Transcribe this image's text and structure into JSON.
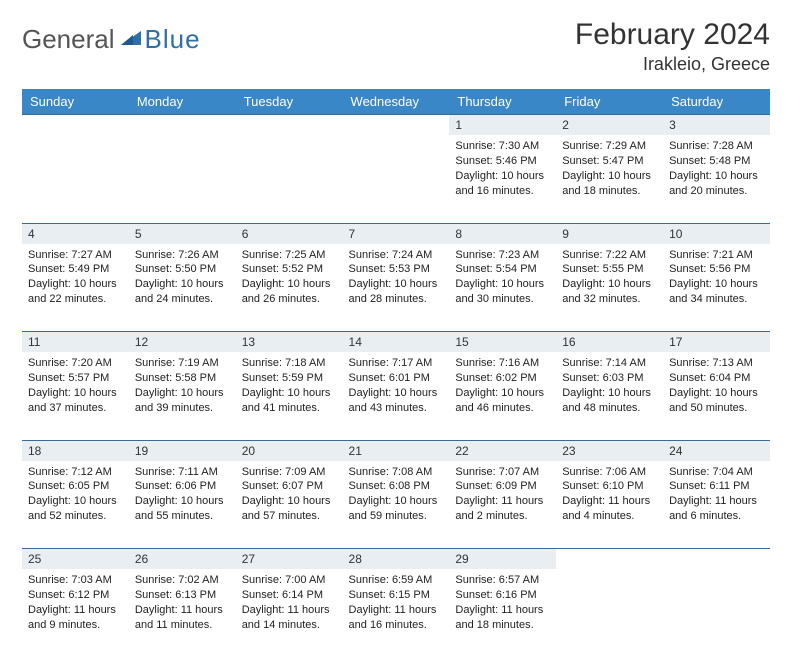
{
  "brand": {
    "general": "General",
    "blue": "Blue"
  },
  "title": "February 2024",
  "location": "Irakleio, Greece",
  "colors": {
    "header_bg": "#3a87c8",
    "header_text": "#ffffff",
    "daynum_bg": "#e9eef2",
    "row_divider": "#3a6a95",
    "logo_blue": "#2f6fa8",
    "logo_gray": "#555555"
  },
  "weekdays": [
    "Sunday",
    "Monday",
    "Tuesday",
    "Wednesday",
    "Thursday",
    "Friday",
    "Saturday"
  ],
  "weeks": [
    {
      "nums": [
        "",
        "",
        "",
        "",
        "1",
        "2",
        "3"
      ],
      "cells": [
        null,
        null,
        null,
        null,
        {
          "sunrise": "Sunrise: 7:30 AM",
          "sunset": "Sunset: 5:46 PM",
          "day1": "Daylight: 10 hours",
          "day2": "and 16 minutes."
        },
        {
          "sunrise": "Sunrise: 7:29 AM",
          "sunset": "Sunset: 5:47 PM",
          "day1": "Daylight: 10 hours",
          "day2": "and 18 minutes."
        },
        {
          "sunrise": "Sunrise: 7:28 AM",
          "sunset": "Sunset: 5:48 PM",
          "day1": "Daylight: 10 hours",
          "day2": "and 20 minutes."
        }
      ]
    },
    {
      "nums": [
        "4",
        "5",
        "6",
        "7",
        "8",
        "9",
        "10"
      ],
      "cells": [
        {
          "sunrise": "Sunrise: 7:27 AM",
          "sunset": "Sunset: 5:49 PM",
          "day1": "Daylight: 10 hours",
          "day2": "and 22 minutes."
        },
        {
          "sunrise": "Sunrise: 7:26 AM",
          "sunset": "Sunset: 5:50 PM",
          "day1": "Daylight: 10 hours",
          "day2": "and 24 minutes."
        },
        {
          "sunrise": "Sunrise: 7:25 AM",
          "sunset": "Sunset: 5:52 PM",
          "day1": "Daylight: 10 hours",
          "day2": "and 26 minutes."
        },
        {
          "sunrise": "Sunrise: 7:24 AM",
          "sunset": "Sunset: 5:53 PM",
          "day1": "Daylight: 10 hours",
          "day2": "and 28 minutes."
        },
        {
          "sunrise": "Sunrise: 7:23 AM",
          "sunset": "Sunset: 5:54 PM",
          "day1": "Daylight: 10 hours",
          "day2": "and 30 minutes."
        },
        {
          "sunrise": "Sunrise: 7:22 AM",
          "sunset": "Sunset: 5:55 PM",
          "day1": "Daylight: 10 hours",
          "day2": "and 32 minutes."
        },
        {
          "sunrise": "Sunrise: 7:21 AM",
          "sunset": "Sunset: 5:56 PM",
          "day1": "Daylight: 10 hours",
          "day2": "and 34 minutes."
        }
      ]
    },
    {
      "nums": [
        "11",
        "12",
        "13",
        "14",
        "15",
        "16",
        "17"
      ],
      "cells": [
        {
          "sunrise": "Sunrise: 7:20 AM",
          "sunset": "Sunset: 5:57 PM",
          "day1": "Daylight: 10 hours",
          "day2": "and 37 minutes."
        },
        {
          "sunrise": "Sunrise: 7:19 AM",
          "sunset": "Sunset: 5:58 PM",
          "day1": "Daylight: 10 hours",
          "day2": "and 39 minutes."
        },
        {
          "sunrise": "Sunrise: 7:18 AM",
          "sunset": "Sunset: 5:59 PM",
          "day1": "Daylight: 10 hours",
          "day2": "and 41 minutes."
        },
        {
          "sunrise": "Sunrise: 7:17 AM",
          "sunset": "Sunset: 6:01 PM",
          "day1": "Daylight: 10 hours",
          "day2": "and 43 minutes."
        },
        {
          "sunrise": "Sunrise: 7:16 AM",
          "sunset": "Sunset: 6:02 PM",
          "day1": "Daylight: 10 hours",
          "day2": "and 46 minutes."
        },
        {
          "sunrise": "Sunrise: 7:14 AM",
          "sunset": "Sunset: 6:03 PM",
          "day1": "Daylight: 10 hours",
          "day2": "and 48 minutes."
        },
        {
          "sunrise": "Sunrise: 7:13 AM",
          "sunset": "Sunset: 6:04 PM",
          "day1": "Daylight: 10 hours",
          "day2": "and 50 minutes."
        }
      ]
    },
    {
      "nums": [
        "18",
        "19",
        "20",
        "21",
        "22",
        "23",
        "24"
      ],
      "cells": [
        {
          "sunrise": "Sunrise: 7:12 AM",
          "sunset": "Sunset: 6:05 PM",
          "day1": "Daylight: 10 hours",
          "day2": "and 52 minutes."
        },
        {
          "sunrise": "Sunrise: 7:11 AM",
          "sunset": "Sunset: 6:06 PM",
          "day1": "Daylight: 10 hours",
          "day2": "and 55 minutes."
        },
        {
          "sunrise": "Sunrise: 7:09 AM",
          "sunset": "Sunset: 6:07 PM",
          "day1": "Daylight: 10 hours",
          "day2": "and 57 minutes."
        },
        {
          "sunrise": "Sunrise: 7:08 AM",
          "sunset": "Sunset: 6:08 PM",
          "day1": "Daylight: 10 hours",
          "day2": "and 59 minutes."
        },
        {
          "sunrise": "Sunrise: 7:07 AM",
          "sunset": "Sunset: 6:09 PM",
          "day1": "Daylight: 11 hours",
          "day2": "and 2 minutes."
        },
        {
          "sunrise": "Sunrise: 7:06 AM",
          "sunset": "Sunset: 6:10 PM",
          "day1": "Daylight: 11 hours",
          "day2": "and 4 minutes."
        },
        {
          "sunrise": "Sunrise: 7:04 AM",
          "sunset": "Sunset: 6:11 PM",
          "day1": "Daylight: 11 hours",
          "day2": "and 6 minutes."
        }
      ]
    },
    {
      "nums": [
        "25",
        "26",
        "27",
        "28",
        "29",
        "",
        ""
      ],
      "cells": [
        {
          "sunrise": "Sunrise: 7:03 AM",
          "sunset": "Sunset: 6:12 PM",
          "day1": "Daylight: 11 hours",
          "day2": "and 9 minutes."
        },
        {
          "sunrise": "Sunrise: 7:02 AM",
          "sunset": "Sunset: 6:13 PM",
          "day1": "Daylight: 11 hours",
          "day2": "and 11 minutes."
        },
        {
          "sunrise": "Sunrise: 7:00 AM",
          "sunset": "Sunset: 6:14 PM",
          "day1": "Daylight: 11 hours",
          "day2": "and 14 minutes."
        },
        {
          "sunrise": "Sunrise: 6:59 AM",
          "sunset": "Sunset: 6:15 PM",
          "day1": "Daylight: 11 hours",
          "day2": "and 16 minutes."
        },
        {
          "sunrise": "Sunrise: 6:57 AM",
          "sunset": "Sunset: 6:16 PM",
          "day1": "Daylight: 11 hours",
          "day2": "and 18 minutes."
        },
        null,
        null
      ]
    }
  ]
}
